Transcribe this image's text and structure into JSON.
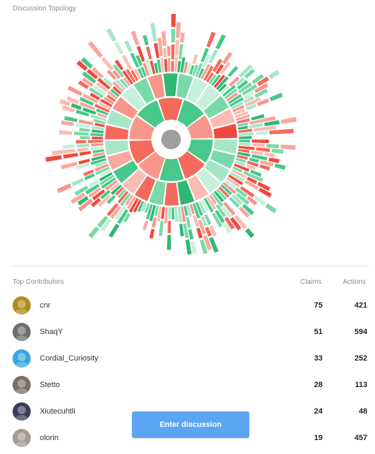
{
  "topology": {
    "title": "Discussion Topology"
  },
  "contributors": {
    "title": "Top Contributors",
    "col_claims": "Claims",
    "col_actions": "Actions",
    "rows": [
      {
        "name": "cnr",
        "claims": "75",
        "actions": "421",
        "avatar_color": "#b08a1e"
      },
      {
        "name": "ShaqY",
        "claims": "51",
        "actions": "594",
        "avatar_color": "#6e6e6e"
      },
      {
        "name": "Cordial_Curiosity",
        "claims": "33",
        "actions": "252",
        "avatar_color": "#3aa6e0"
      },
      {
        "name": "Stetto",
        "claims": "28",
        "actions": "113",
        "avatar_color": "#7a6f68"
      },
      {
        "name": "Xiutecuhtli",
        "claims": "24",
        "actions": "48",
        "avatar_color": "#3b3b5a"
      },
      {
        "name": "olorin",
        "claims": "19",
        "actions": "457",
        "avatar_color": "#a49a90"
      }
    ]
  },
  "actions": {
    "enter_label": "Enter discussion"
  },
  "colors": {
    "pro": "#48c88a",
    "con": "#f46a5c",
    "center": "#9e9e9e",
    "button": "#5aa6f2"
  }
}
